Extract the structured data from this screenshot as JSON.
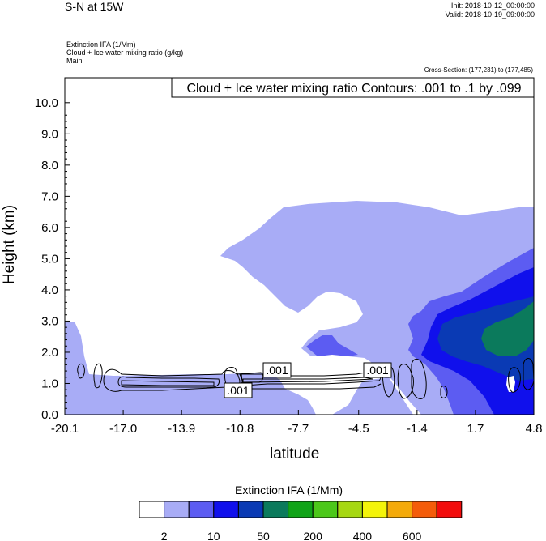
{
  "header": {
    "title": "S-N at 15W",
    "init": "Init: 2018-10-12_00:00:00",
    "valid": "Valid: 2018-10-19_09:00:00",
    "var1": "Extinction IFA   (1/Mm)",
    "var2": "Cloud + Ice water mixing ratio   (g/kg)",
    "var3": "Main",
    "cross_section": "Cross-Section: (177,231) to (177,485)"
  },
  "chart_data": {
    "type": "contour",
    "contour_info": "Cloud + Ice water mixing ratio Contours: .001 to .1 by .099",
    "xlabel": "latitude",
    "ylabel": "Height (km)",
    "xlim": [
      -20.1,
      4.8
    ],
    "ylim": [
      0.0,
      10.8
    ],
    "x_ticks": [
      "-20.1",
      "-17.0",
      "-13.9",
      "-10.8",
      "-7.7",
      "-4.5",
      "-1.4",
      "1.7",
      "4.8"
    ],
    "y_ticks": [
      "0.0",
      "1.0",
      "2.0",
      "3.0",
      "4.0",
      "5.0",
      "6.0",
      "7.0",
      "8.0",
      "9.0",
      "10.0"
    ],
    "contour_labels": [
      ".001",
      ".001",
      ".001"
    ],
    "legend": {
      "title": "Extinction IFA  (1/Mm)",
      "tick_labels": [
        "2",
        "10",
        "50",
        "200",
        "400",
        "600"
      ],
      "colors": [
        "#ffffff",
        "#a8acf6",
        "#5c5cf2",
        "#1010ec",
        "#0a3ab4",
        "#0b7a5c",
        "#10a418",
        "#4cc81a",
        "#a6d812",
        "#f4f40a",
        "#f4aa0a",
        "#f45c0a",
        "#f20c0c"
      ]
    }
  }
}
